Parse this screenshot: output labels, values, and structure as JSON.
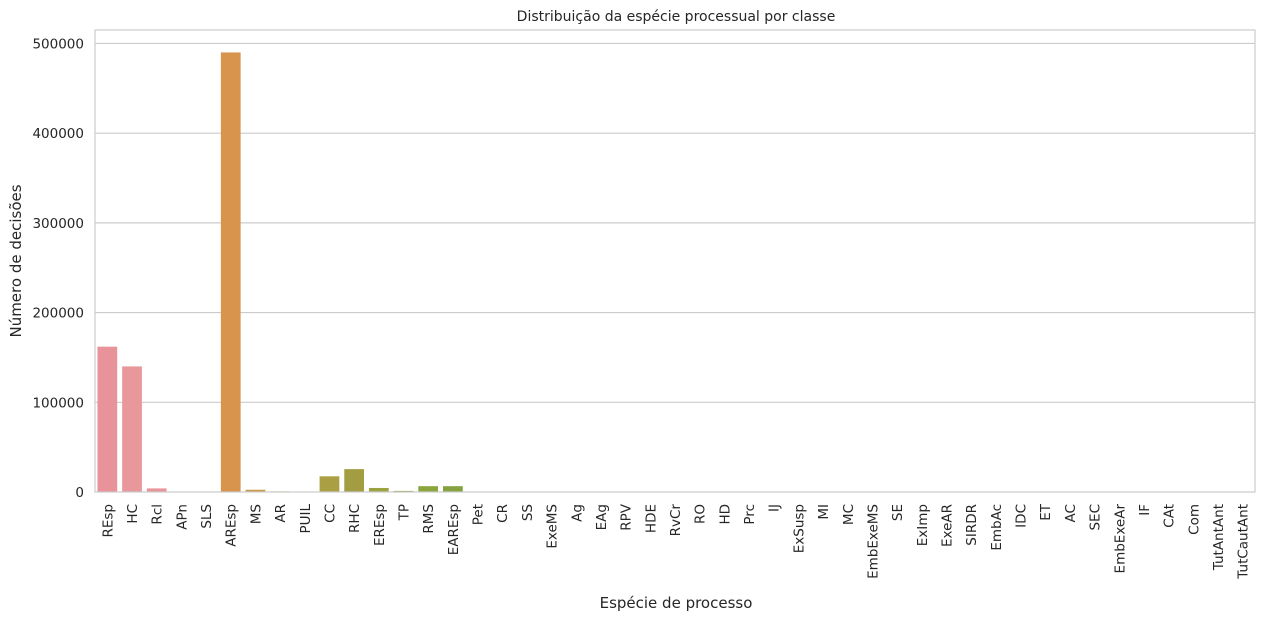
{
  "chart_data": {
    "type": "bar",
    "title": "Distribuição da espécie processual por classe",
    "xlabel": "Espécie de processo",
    "ylabel": "Número de decisões",
    "ylim": [
      0,
      515000
    ],
    "yticks": [
      0,
      100000,
      200000,
      300000,
      400000,
      500000
    ],
    "ytick_labels": [
      "0",
      "100000",
      "200000",
      "300000",
      "400000",
      "500000"
    ],
    "grid": true,
    "categories": [
      "REsp",
      "HC",
      "Rcl",
      "APn",
      "SLS",
      "AREsp",
      "MS",
      "AR",
      "PUIL",
      "CC",
      "RHC",
      "EREsp",
      "TP",
      "RMS",
      "EAREsp",
      "Pet",
      "CR",
      "SS",
      "ExeMS",
      "Ag",
      "EAg",
      "RPV",
      "HDE",
      "RvCr",
      "RO",
      "HD",
      "Prc",
      "IJ",
      "ExSusp",
      "MI",
      "MC",
      "EmbExeMS",
      "SE",
      "ExImp",
      "ExeAR",
      "SIRDR",
      "EmbAc",
      "IDC",
      "ET",
      "AC",
      "SEC",
      "EmbExeAr",
      "IF",
      "CAt",
      "Com",
      "TutAntAnt",
      "TutCautAnt"
    ],
    "values": [
      162000,
      140000,
      4000,
      400,
      300,
      490000,
      2500,
      700,
      500,
      17500,
      25500,
      4500,
      1200,
      6500,
      6500,
      300,
      200,
      200,
      100,
      100,
      100,
      100,
      100,
      100,
      100,
      100,
      100,
      50,
      50,
      50,
      50,
      50,
      50,
      50,
      50,
      50,
      50,
      50,
      50,
      50,
      50,
      50,
      50,
      50,
      50,
      50,
      50
    ],
    "colors": [
      "#e8929a",
      "#e8979a",
      "#e8949a",
      "#e6999a",
      "#e29b8e",
      "#d8934c",
      "#c69b48",
      "#bb9d44",
      "#b5a043",
      "#aa9f43",
      "#a29d40",
      "#9ba23f",
      "#93a43f",
      "#8ba43e",
      "#84a33f",
      "#7fa542",
      "#78a645",
      "#6ea84b",
      "#62a955",
      "#5aa862",
      "#53a76c",
      "#4fa577",
      "#4aa47f",
      "#48a487",
      "#46a48e",
      "#45a496",
      "#44a49e",
      "#44a3a5",
      "#46a2ac",
      "#48a2b2",
      "#4aa0b9",
      "#4e9ec0",
      "#549cc6",
      "#5c99cd",
      "#6696d4",
      "#7393da",
      "#8390dd",
      "#938ce0",
      "#a289e0",
      "#b085e0",
      "#bd82de",
      "#c880da",
      "#d27fd5",
      "#db7ecb",
      "#e280c0",
      "#e784b4",
      "#e98aa8"
    ]
  }
}
